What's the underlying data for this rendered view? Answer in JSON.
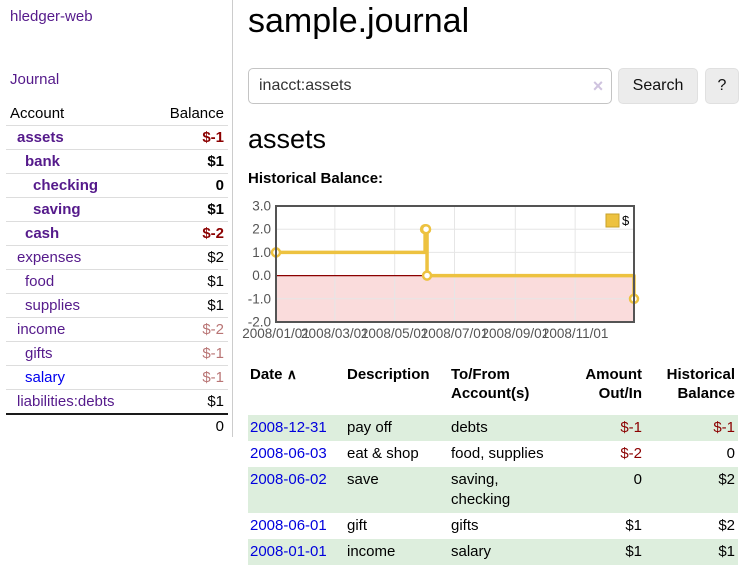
{
  "app": {
    "brand": "hledger-web",
    "nav": {
      "journal_label": "Journal"
    }
  },
  "sidebar": {
    "header": {
      "account": "Account",
      "balance": "Balance"
    },
    "rows": [
      {
        "name": "assets",
        "level": 1,
        "bold": true,
        "link_color": "purple",
        "balance": "$-1",
        "balance_class": "neg-strong"
      },
      {
        "name": "bank",
        "level": 2,
        "bold": true,
        "link_color": "purple",
        "balance": "$1",
        "balance_class": "normal"
      },
      {
        "name": "checking",
        "level": 3,
        "bold": true,
        "link_color": "purple",
        "balance": "0",
        "balance_class": "normal"
      },
      {
        "name": "saving",
        "level": 3,
        "bold": true,
        "link_color": "purple",
        "balance": "$1",
        "balance_class": "normal"
      },
      {
        "name": "cash",
        "level": 2,
        "bold": true,
        "link_color": "purple",
        "balance": "$-2",
        "balance_class": "neg-strong"
      },
      {
        "name": "expenses",
        "level": 1,
        "bold": false,
        "link_color": "purple",
        "balance": "$2",
        "balance_class": "normal"
      },
      {
        "name": "food",
        "level": 2,
        "bold": false,
        "link_color": "purple",
        "balance": "$1",
        "balance_class": "normal"
      },
      {
        "name": "supplies",
        "level": 2,
        "bold": false,
        "link_color": "purple",
        "balance": "$1",
        "balance_class": "normal"
      },
      {
        "name": "income",
        "level": 1,
        "bold": false,
        "link_color": "purple",
        "balance": "$-2",
        "balance_class": "neg-soft"
      },
      {
        "name": "gifts",
        "level": 2,
        "bold": false,
        "link_color": "purple",
        "balance": "$-1",
        "balance_class": "neg-soft"
      },
      {
        "name": "salary",
        "level": 2,
        "bold": false,
        "link_color": "blue",
        "balance": "$-1",
        "balance_class": "neg-soft"
      },
      {
        "name": "liabilities:debts",
        "level": 1,
        "bold": false,
        "link_color": "purple",
        "balance": "$1",
        "balance_class": "normal"
      }
    ],
    "total": "0"
  },
  "main": {
    "title": "sample.journal",
    "search": {
      "value": "inacct:assets",
      "clear_icon": "×",
      "search_button": "Search",
      "help_button": "?"
    },
    "account_heading": "assets",
    "chart_label": "Historical Balance:"
  },
  "chart_data": {
    "type": "line",
    "step": true,
    "title": "Historical Balance:",
    "legend": {
      "label": "$",
      "position": "top-right"
    },
    "xrange": [
      "2008-01-01",
      "2008-12-31"
    ],
    "ylim": [
      -2,
      3
    ],
    "yticks": [
      {
        "label": "3.0",
        "value": 3
      },
      {
        "label": "2.0",
        "value": 2
      },
      {
        "label": "1.0",
        "value": 1
      },
      {
        "label": "0.0",
        "value": 0
      },
      {
        "label": "-1.0",
        "value": -1
      },
      {
        "label": "-2.0",
        "value": -2
      }
    ],
    "xticks": [
      {
        "label": "2008/01/01",
        "date": "2008-01-01"
      },
      {
        "label": "2008/03/01",
        "date": "2008-03-01"
      },
      {
        "label": "2008/05/01",
        "date": "2008-05-01"
      },
      {
        "label": "2008/07/01",
        "date": "2008-07-01"
      },
      {
        "label": "2008/09/01",
        "date": "2008-09-01"
      },
      {
        "label": "2008/11/01",
        "date": "2008-11-01"
      }
    ],
    "series": [
      {
        "name": "$",
        "color": "#edc240",
        "points": [
          [
            "2008-01-01",
            1
          ],
          [
            "2008-06-01",
            2
          ],
          [
            "2008-06-02",
            2
          ],
          [
            "2008-06-03",
            0
          ],
          [
            "2008-12-31",
            -1
          ]
        ]
      }
    ],
    "colors": {
      "grid": "#e6e6e6",
      "border": "#545454",
      "tick_text": "#545454",
      "zero_line": "#8b0000",
      "negative_region": "#fadcdc",
      "legend_box_border": "#c7a22a"
    }
  },
  "register": {
    "headers": {
      "date": "Date",
      "sort_icon": "∧",
      "description": "Description",
      "tofrom": "To/From Account(s)",
      "amount": "Amount Out/In",
      "balance": "Historical Balance"
    },
    "rows": [
      {
        "date": "2008-12-31",
        "description": "pay off",
        "tofrom": "debts",
        "amount": "$-1",
        "balance": "$-1"
      },
      {
        "date": "2008-06-03",
        "description": "eat & shop",
        "tofrom": "food, supplies",
        "amount": "$-2",
        "balance": "0"
      },
      {
        "date": "2008-06-02",
        "description": "save",
        "tofrom": "saving, checking",
        "amount": "0",
        "balance": "$2"
      },
      {
        "date": "2008-06-01",
        "description": "gift",
        "tofrom": "gifts",
        "amount": "$1",
        "balance": "$2"
      },
      {
        "date": "2008-01-01",
        "description": "income",
        "tofrom": "salary",
        "amount": "$1",
        "balance": "$1"
      }
    ],
    "row_stripe_color": "#ddeedd"
  }
}
